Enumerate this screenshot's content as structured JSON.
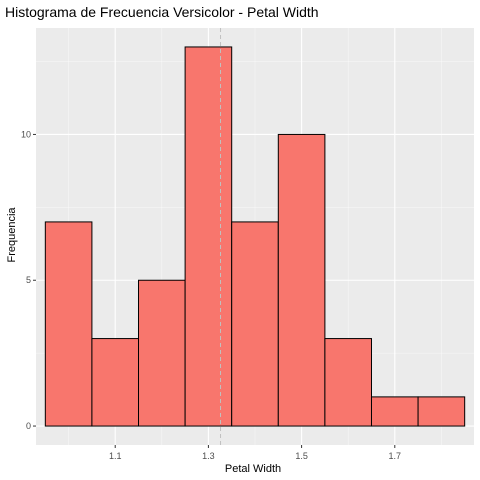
{
  "chart_data": {
    "type": "bar",
    "title": "Histograma de Frecuencia Versicolor - Petal Width",
    "xlabel": "Petal Width",
    "ylabel": "Frequencia",
    "bins": [
      {
        "x0": 0.95,
        "x1": 1.05,
        "count": 7
      },
      {
        "x0": 1.05,
        "x1": 1.15,
        "count": 3
      },
      {
        "x0": 1.15,
        "x1": 1.25,
        "count": 5
      },
      {
        "x0": 1.25,
        "x1": 1.35,
        "count": 13
      },
      {
        "x0": 1.35,
        "x1": 1.45,
        "count": 7
      },
      {
        "x0": 1.45,
        "x1": 1.55,
        "count": 10
      },
      {
        "x0": 1.55,
        "x1": 1.65,
        "count": 3
      },
      {
        "x0": 1.65,
        "x1": 1.75,
        "count": 1
      },
      {
        "x0": 1.75,
        "x1": 1.85,
        "count": 1
      }
    ],
    "x_ticks": [
      1.1,
      1.3,
      1.5,
      1.7
    ],
    "x_tick_labels": [
      "1.1",
      "1.3",
      "1.5",
      "1.7"
    ],
    "y_ticks": [
      0,
      5,
      10
    ],
    "y_tick_labels": [
      "0",
      "5",
      "10"
    ],
    "xlim": [
      0.93,
      1.87
    ],
    "ylim": [
      -0.65,
      13.65
    ],
    "mean_line": 1.326,
    "grid": true,
    "colors": {
      "bar_fill": "#F8766D",
      "bar_stroke": "#000000",
      "panel_bg": "#EBEBEB",
      "grid_major": "#FFFFFF",
      "mean_line": "#C0C0C0"
    }
  }
}
